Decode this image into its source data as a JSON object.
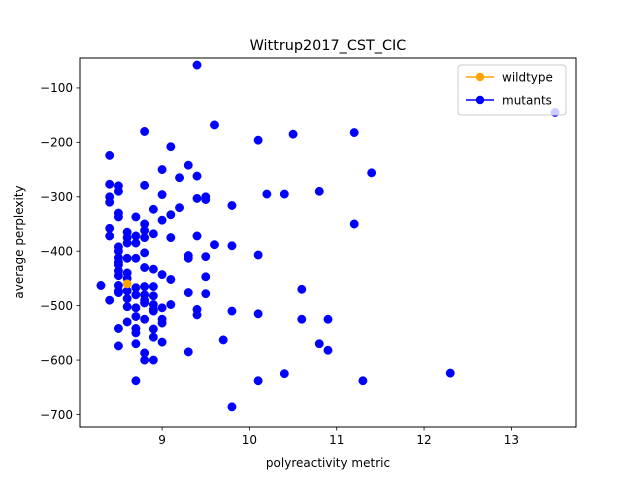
{
  "chart_data": {
    "type": "scatter",
    "title": "Wittrup2017_CST_CIC",
    "xlabel": "polyreactivity metric",
    "ylabel": "average perplexity",
    "xlim": [
      8.06,
      13.74
    ],
    "ylim": [
      -723,
      -45
    ],
    "xticks": [
      9,
      10,
      11,
      12,
      13
    ],
    "yticks": [
      -700,
      -600,
      -500,
      -400,
      -300,
      -200,
      -100
    ],
    "grid": false,
    "legend_position": "top-right",
    "series": [
      {
        "name": "mutants",
        "color": "#0000ff",
        "points": [
          [
            9.4,
            -58
          ],
          [
            13.5,
            -145
          ],
          [
            9.6,
            -168
          ],
          [
            8.8,
            -180
          ],
          [
            11.2,
            -182
          ],
          [
            10.5,
            -185
          ],
          [
            10.1,
            -196
          ],
          [
            9.1,
            -208
          ],
          [
            8.4,
            -224
          ],
          [
            9.3,
            -242
          ],
          [
            9.0,
            -250
          ],
          [
            11.4,
            -256
          ],
          [
            9.4,
            -262
          ],
          [
            9.2,
            -265
          ],
          [
            8.4,
            -277
          ],
          [
            8.5,
            -280
          ],
          [
            8.8,
            -279
          ],
          [
            10.8,
            -290
          ],
          [
            8.5,
            -290
          ],
          [
            10.2,
            -295
          ],
          [
            10.4,
            -295
          ],
          [
            9.0,
            -296
          ],
          [
            8.4,
            -300
          ],
          [
            9.5,
            -300
          ],
          [
            9.4,
            -303
          ],
          [
            9.5,
            -305
          ],
          [
            8.4,
            -310
          ],
          [
            9.8,
            -316
          ],
          [
            9.2,
            -320
          ],
          [
            8.9,
            -323
          ],
          [
            8.5,
            -330
          ],
          [
            9.1,
            -333
          ],
          [
            8.5,
            -337
          ],
          [
            8.7,
            -337
          ],
          [
            9.0,
            -343
          ],
          [
            8.8,
            -350
          ],
          [
            11.2,
            -350
          ],
          [
            8.4,
            -358
          ],
          [
            8.8,
            -362
          ],
          [
            8.6,
            -365
          ],
          [
            8.9,
            -368
          ],
          [
            8.4,
            -372
          ],
          [
            8.7,
            -372
          ],
          [
            9.4,
            -372
          ],
          [
            8.6,
            -375
          ],
          [
            8.8,
            -375
          ],
          [
            9.1,
            -375
          ],
          [
            8.6,
            -385
          ],
          [
            8.7,
            -385
          ],
          [
            9.6,
            -388
          ],
          [
            9.8,
            -390
          ],
          [
            8.5,
            -392
          ],
          [
            8.5,
            -400
          ],
          [
            8.8,
            -403
          ],
          [
            10.1,
            -407
          ],
          [
            9.3,
            -408
          ],
          [
            9.5,
            -410
          ],
          [
            8.5,
            -412
          ],
          [
            8.6,
            -413
          ],
          [
            8.7,
            -413
          ],
          [
            9.3,
            -413
          ],
          [
            8.5,
            -420
          ],
          [
            8.5,
            -425
          ],
          [
            8.8,
            -430
          ],
          [
            8.9,
            -433
          ],
          [
            8.5,
            -436
          ],
          [
            8.6,
            -440
          ],
          [
            9.0,
            -443
          ],
          [
            8.5,
            -445
          ],
          [
            9.5,
            -447
          ],
          [
            8.6,
            -450
          ],
          [
            9.1,
            -452
          ],
          [
            8.3,
            -463
          ],
          [
            8.5,
            -463
          ],
          [
            8.8,
            -465
          ],
          [
            8.9,
            -465
          ],
          [
            8.7,
            -467
          ],
          [
            10.6,
            -470
          ],
          [
            8.5,
            -473
          ],
          [
            8.6,
            -473
          ],
          [
            8.5,
            -476
          ],
          [
            9.3,
            -476
          ],
          [
            9.5,
            -478
          ],
          [
            8.7,
            -480
          ],
          [
            8.8,
            -480
          ],
          [
            8.9,
            -482
          ],
          [
            8.6,
            -487
          ],
          [
            8.4,
            -490
          ],
          [
            8.8,
            -490
          ],
          [
            8.8,
            -495
          ],
          [
            8.9,
            -498
          ],
          [
            9.1,
            -498
          ],
          [
            8.6,
            -502
          ],
          [
            8.7,
            -504
          ],
          [
            9.0,
            -504
          ],
          [
            8.9,
            -507
          ],
          [
            9.4,
            -507
          ],
          [
            8.9,
            -510
          ],
          [
            9.8,
            -510
          ],
          [
            10.1,
            -515
          ],
          [
            9.4,
            -517
          ],
          [
            8.7,
            -520
          ],
          [
            8.8,
            -525
          ],
          [
            9.0,
            -525
          ],
          [
            10.6,
            -525
          ],
          [
            10.9,
            -525
          ],
          [
            8.6,
            -530
          ],
          [
            9.0,
            -532
          ],
          [
            8.5,
            -542
          ],
          [
            8.7,
            -542
          ],
          [
            8.9,
            -543
          ],
          [
            8.7,
            -550
          ],
          [
            8.9,
            -558
          ],
          [
            9.7,
            -563
          ],
          [
            9.0,
            -567
          ],
          [
            8.7,
            -570
          ],
          [
            10.8,
            -570
          ],
          [
            8.5,
            -574
          ],
          [
            10.9,
            -582
          ],
          [
            9.3,
            -585
          ],
          [
            8.8,
            -587
          ],
          [
            8.8,
            -600
          ],
          [
            8.9,
            -600
          ],
          [
            12.3,
            -624
          ],
          [
            10.4,
            -625
          ],
          [
            8.7,
            -638
          ],
          [
            10.1,
            -638
          ],
          [
            11.3,
            -638
          ],
          [
            9.8,
            -686
          ]
        ]
      },
      {
        "name": "wildtype",
        "color": "#ffa500",
        "points": [
          [
            8.6,
            -460
          ]
        ]
      }
    ],
    "legend": [
      {
        "label": "wildtype",
        "color": "#ffa500"
      },
      {
        "label": "mutants",
        "color": "#0000ff"
      }
    ]
  }
}
